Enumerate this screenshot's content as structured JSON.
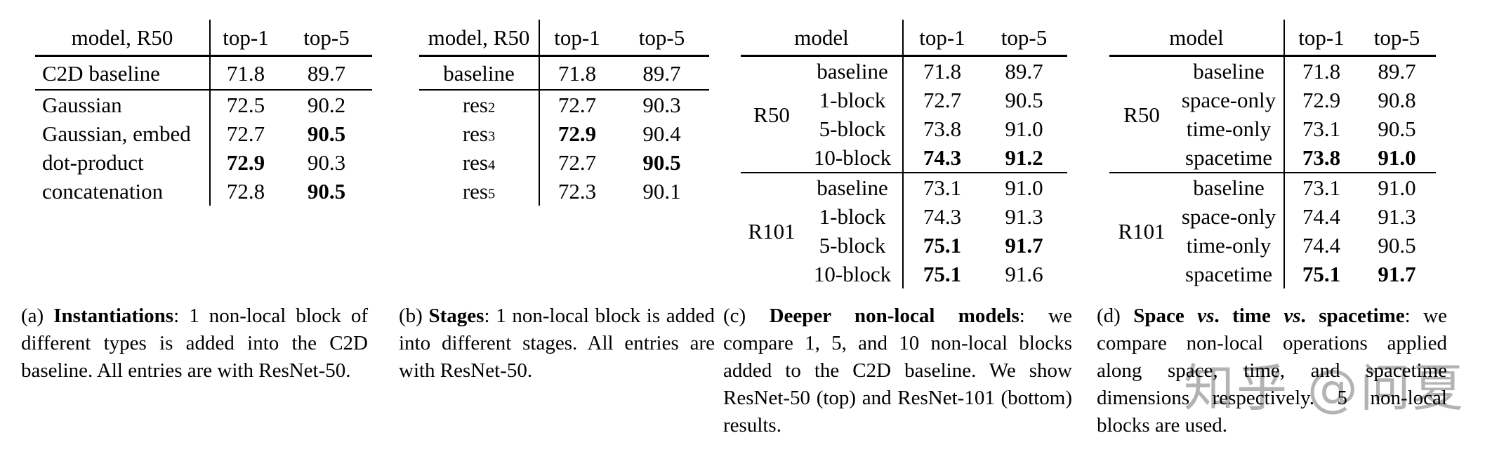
{
  "watermark": {
    "text": "知乎 @问夏",
    "color": "#b3b3b3"
  },
  "tables": [
    {
      "id": "a",
      "header": {
        "model": "model, R50",
        "top1": "top-1",
        "top5": "top-5"
      },
      "rows": [
        {
          "model": "C2D baseline",
          "top1": "71.8",
          "top5": "89.7",
          "section": "baseline"
        },
        {
          "model": "Gaussian",
          "top1": "72.5",
          "top5": "90.2"
        },
        {
          "model": "Gaussian, embed",
          "top1": "72.7",
          "top5": "90.5",
          "bold5": true
        },
        {
          "model": "dot-product",
          "top1": "72.9",
          "bold1": true,
          "top5": "90.3"
        },
        {
          "model": "concatenation",
          "top1": "72.8",
          "top5": "90.5",
          "bold5": true
        }
      ],
      "caption": [
        {
          "text": "(a) "
        },
        {
          "text": "Instantiations",
          "bold": true
        },
        {
          "text": ": 1 non-local block of different types is added into the C2D baseline. All entries are with ResNet-50."
        }
      ]
    },
    {
      "id": "b",
      "header": {
        "model": "model, R50",
        "top1": "top-1",
        "top5": "top-5"
      },
      "rows": [
        {
          "model": "baseline",
          "top1": "71.8",
          "top5": "89.7",
          "section": "baseline"
        },
        {
          "model": "res",
          "sub": "2",
          "top1": "72.7",
          "top5": "90.3"
        },
        {
          "model": "res",
          "sub": "3",
          "top1": "72.9",
          "bold1": true,
          "top5": "90.4"
        },
        {
          "model": "res",
          "sub": "4",
          "top1": "72.7",
          "top5": "90.5",
          "bold5": true
        },
        {
          "model": "res",
          "sub": "5",
          "top1": "72.3",
          "top5": "90.1"
        }
      ],
      "caption": [
        {
          "text": "(b) "
        },
        {
          "text": "Stages",
          "bold": true
        },
        {
          "text": ": 1 non-local block is added into different stages. All entries are with ResNet-50."
        }
      ]
    },
    {
      "id": "c",
      "header": {
        "model": "model",
        "top1": "top-1",
        "top5": "top-5"
      },
      "groups": [
        {
          "label": "R50",
          "rows": [
            {
              "model": "baseline",
              "top1": "71.8",
              "top5": "89.7"
            },
            {
              "model": "1-block",
              "top1": "72.7",
              "top5": "90.5"
            },
            {
              "model": "5-block",
              "top1": "73.8",
              "top5": "91.0"
            },
            {
              "model": "10-block",
              "top1": "74.3",
              "bold1": true,
              "top5": "91.2",
              "bold5": true
            }
          ]
        },
        {
          "label": "R101",
          "rows": [
            {
              "model": "baseline",
              "top1": "73.1",
              "top5": "91.0"
            },
            {
              "model": "1-block",
              "top1": "74.3",
              "top5": "91.3"
            },
            {
              "model": "5-block",
              "top1": "75.1",
              "bold1": true,
              "top5": "91.7",
              "bold5": true
            },
            {
              "model": "10-block",
              "top1": "75.1",
              "bold1": true,
              "top5": "91.6"
            }
          ]
        }
      ],
      "caption": [
        {
          "text": "(c) "
        },
        {
          "text": "Deeper non-local models",
          "bold": true
        },
        {
          "text": ": we compare 1, 5, and 10 non-local blocks added to the C2D baseline. We show ResNet-50 (top) and ResNet-101 (bottom) results."
        }
      ]
    },
    {
      "id": "d",
      "header": {
        "model": "model",
        "top1": "top-1",
        "top5": "top-5"
      },
      "groups": [
        {
          "label": "R50",
          "rows": [
            {
              "model": "baseline",
              "top1": "71.8",
              "top5": "89.7"
            },
            {
              "model": "space-only",
              "top1": "72.9",
              "top5": "90.8"
            },
            {
              "model": "time-only",
              "top1": "73.1",
              "top5": "90.5"
            },
            {
              "model": "spacetime",
              "top1": "73.8",
              "bold1": true,
              "top5": "91.0",
              "bold5": true
            }
          ]
        },
        {
          "label": "R101",
          "rows": [
            {
              "model": "baseline",
              "top1": "73.1",
              "top5": "91.0"
            },
            {
              "model": "space-only",
              "top1": "74.4",
              "top5": "91.3"
            },
            {
              "model": "time-only",
              "top1": "74.4",
              "top5": "90.5"
            },
            {
              "model": "spacetime",
              "top1": "75.1",
              "bold1": true,
              "top5": "91.7",
              "bold5": true
            }
          ]
        }
      ],
      "caption": [
        {
          "text": "(d) "
        },
        {
          "text": "Space ",
          "bold": true
        },
        {
          "text": "vs",
          "bold": true,
          "italic": true
        },
        {
          "text": ". time ",
          "bold": true
        },
        {
          "text": "vs",
          "bold": true,
          "italic": true
        },
        {
          "text": ". spacetime",
          "bold": true
        },
        {
          "text": ": we compare non-local operations applied along space, time, and spacetime dimensions respectively. 5 non-local blocks are used."
        }
      ]
    }
  ]
}
